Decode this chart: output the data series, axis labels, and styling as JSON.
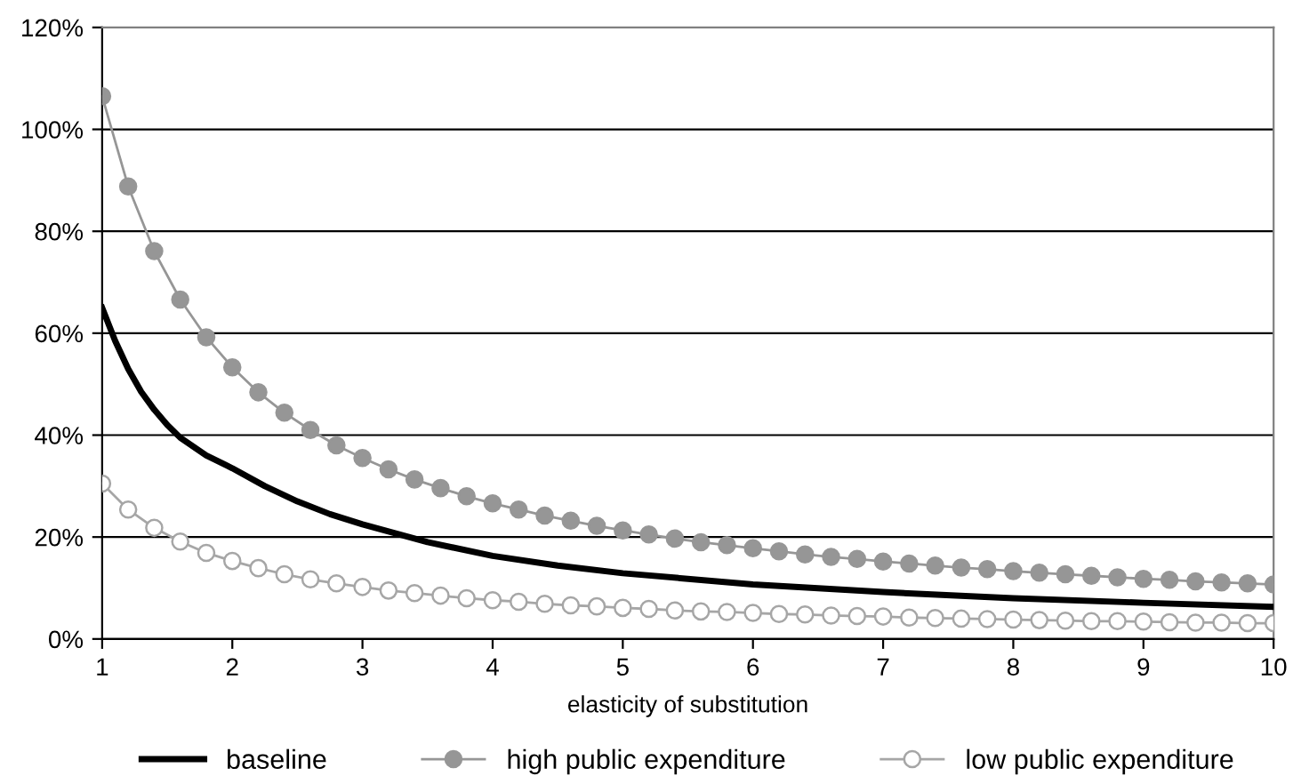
{
  "chart_data": {
    "type": "line",
    "xlabel": "elasticity of substitution",
    "xlim": [
      1,
      10
    ],
    "xticks": [
      1,
      2,
      3,
      4,
      5,
      6,
      7,
      8,
      9,
      10
    ],
    "ylim": [
      0,
      120
    ],
    "yticks": [
      {
        "value": 0,
        "label": "0%"
      },
      {
        "value": 20,
        "label": "20%"
      },
      {
        "value": 40,
        "label": "40%"
      },
      {
        "value": 60,
        "label": "60%"
      },
      {
        "value": 80,
        "label": "80%"
      },
      {
        "value": 100,
        "label": "100%"
      },
      {
        "value": 120,
        "label": "120%"
      }
    ],
    "grid": "y",
    "legend": "bottom",
    "series": [
      {
        "name": "baseline",
        "color": "#000000",
        "marker": "none",
        "x": [
          1,
          1.1,
          1.2,
          1.3,
          1.4,
          1.5,
          1.6,
          1.8,
          2,
          2.25,
          2.5,
          2.75,
          3,
          3.5,
          4,
          4.5,
          5,
          6,
          7,
          8,
          9,
          10
        ],
        "values": [
          65,
          58.5,
          53,
          48.5,
          45,
          42,
          39.5,
          36,
          33.5,
          30,
          27,
          24.5,
          22.5,
          19,
          16.3,
          14.4,
          12.9,
          10.7,
          9.2,
          8,
          7.1,
          6.3
        ]
      },
      {
        "name": "high public expenditure",
        "color": "#969696",
        "marker": "circle",
        "x": [
          1,
          1.2,
          1.4,
          1.6,
          1.8,
          2,
          2.2,
          2.4,
          2.6,
          2.8,
          3,
          3.2,
          3.4,
          3.6,
          3.8,
          4,
          4.2,
          4.4,
          4.6,
          4.8,
          5,
          5.2,
          5.4,
          5.6,
          5.8,
          6,
          6.2,
          6.4,
          6.6,
          6.8,
          7,
          7.2,
          7.4,
          7.6,
          7.8,
          8,
          8.2,
          8.4,
          8.6,
          8.8,
          9,
          9.2,
          9.4,
          9.6,
          9.8,
          10
        ],
        "values": [
          106.5,
          88.8,
          76.1,
          66.6,
          59.2,
          53.3,
          48.4,
          44.4,
          41.0,
          38.0,
          35.5,
          33.3,
          31.3,
          29.6,
          28.0,
          26.6,
          25.4,
          24.2,
          23.2,
          22.2,
          21.3,
          20.5,
          19.7,
          19.0,
          18.4,
          17.8,
          17.2,
          16.6,
          16.1,
          15.7,
          15.2,
          14.8,
          14.4,
          14.0,
          13.7,
          13.3,
          13.0,
          12.7,
          12.4,
          12.1,
          11.8,
          11.6,
          11.3,
          11.1,
          10.9,
          10.7
        ]
      },
      {
        "name": "low public expenditure",
        "color": "#a6a6a6",
        "marker": "circle",
        "x": [
          1,
          1.2,
          1.4,
          1.6,
          1.8,
          2,
          2.2,
          2.4,
          2.6,
          2.8,
          3,
          3.2,
          3.4,
          3.6,
          3.8,
          4,
          4.2,
          4.4,
          4.6,
          4.8,
          5,
          5.2,
          5.4,
          5.6,
          5.8,
          6,
          6.2,
          6.4,
          6.6,
          6.8,
          7,
          7.2,
          7.4,
          7.6,
          7.8,
          8,
          8.2,
          8.4,
          8.6,
          8.8,
          9,
          9.2,
          9.4,
          9.6,
          9.8,
          10
        ],
        "values": [
          30.5,
          25.4,
          21.8,
          19.1,
          16.9,
          15.3,
          13.9,
          12.7,
          11.7,
          10.9,
          10.2,
          9.5,
          9.0,
          8.5,
          8.0,
          7.6,
          7.3,
          6.9,
          6.6,
          6.4,
          6.1,
          5.9,
          5.6,
          5.4,
          5.3,
          5.1,
          4.9,
          4.8,
          4.6,
          4.5,
          4.4,
          4.2,
          4.1,
          4.0,
          3.9,
          3.8,
          3.7,
          3.6,
          3.5,
          3.5,
          3.4,
          3.3,
          3.2,
          3.2,
          3.1,
          3.1
        ]
      }
    ]
  }
}
